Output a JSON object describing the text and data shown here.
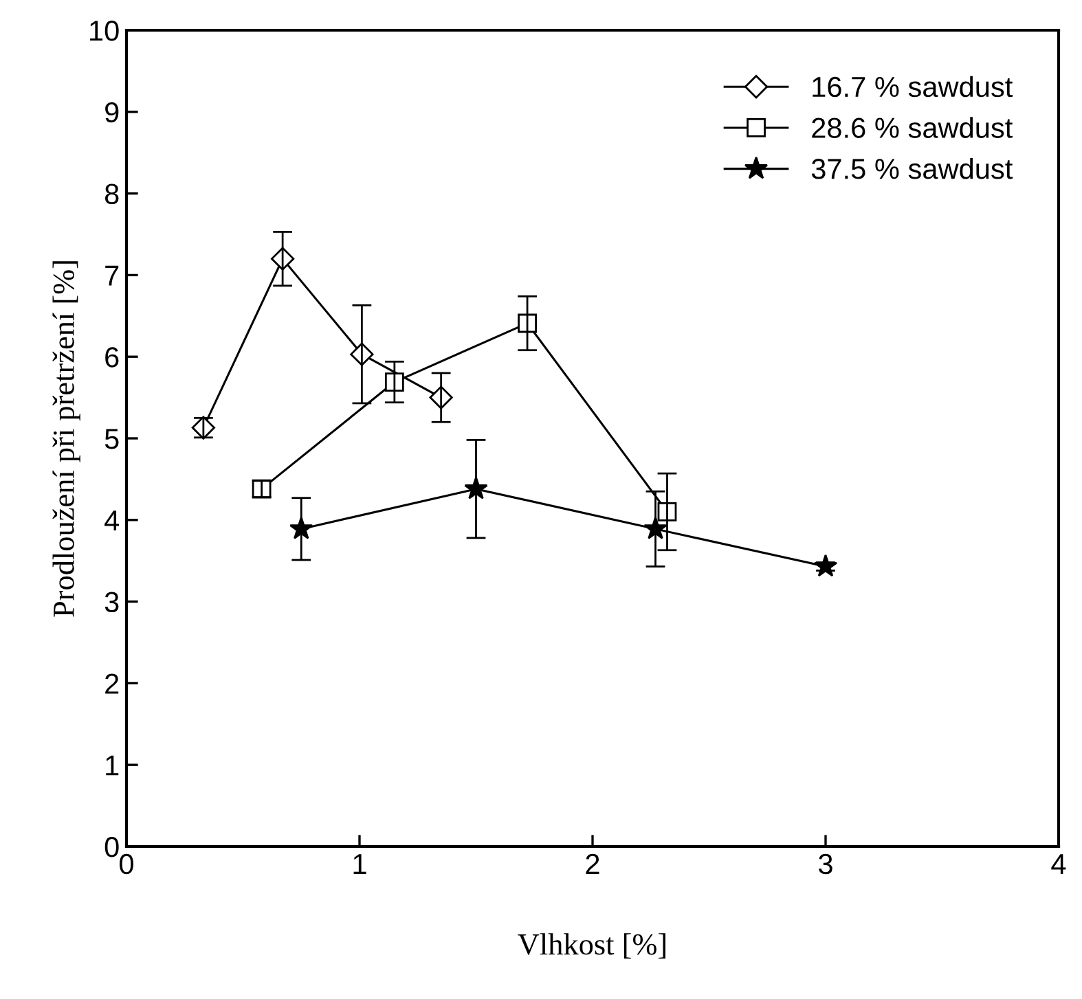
{
  "chart_data": {
    "type": "line",
    "xlabel": "Vlhkost [%]",
    "ylabel": "Prodloužení při přetržení [%]",
    "xlim": [
      0,
      4
    ],
    "xticks": [
      0,
      1,
      2,
      3,
      4
    ],
    "ylim": [
      0,
      10
    ],
    "yticks": [
      0,
      1,
      2,
      3,
      4,
      5,
      6,
      7,
      8,
      9,
      10
    ],
    "grid": false,
    "legend": "top right",
    "series": [
      {
        "name": "16.7 % sawdust",
        "color": "#000000",
        "marker": "diamond",
        "x": [
          0.33,
          0.67,
          1.01,
          1.35
        ],
        "values": [
          5.13,
          7.2,
          6.03,
          5.5
        ],
        "errors": [
          0.12,
          0.33,
          0.6,
          0.3
        ]
      },
      {
        "name": "28.6 % sawdust",
        "color": "#000000",
        "marker": "square",
        "x": [
          0.58,
          1.15,
          1.72,
          2.32
        ],
        "values": [
          4.38,
          5.69,
          6.41,
          4.1
        ],
        "errors": [
          0.1,
          0.25,
          0.33,
          0.47
        ]
      },
      {
        "name": "37.5 % sawdust",
        "color": "#000000",
        "marker": "star",
        "x": [
          0.75,
          1.5,
          2.27,
          3.0
        ],
        "values": [
          3.89,
          4.38,
          3.89,
          3.43
        ],
        "errors": [
          0.38,
          0.6,
          0.46,
          0.05
        ]
      }
    ]
  }
}
